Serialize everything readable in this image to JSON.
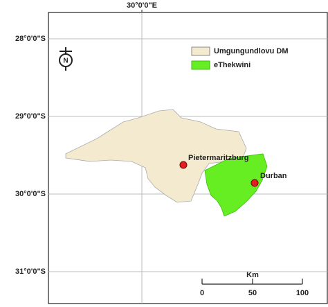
{
  "graticule": {
    "longitude_labels": [
      "30°0'0\"E"
    ],
    "latitude_labels": [
      "28°0'0\"S",
      "29°0'0\"S",
      "30°0'0\"S",
      "31°0'0\"S"
    ]
  },
  "north_arrow": {
    "label": "N"
  },
  "legend": {
    "items": [
      "Umgungundlovu DM",
      "eThekwini"
    ]
  },
  "places": [
    "Pietermaritzburg",
    "Durban"
  ],
  "scale_bar": {
    "unit": "Km",
    "labels": [
      "0",
      "50",
      "100"
    ]
  }
}
